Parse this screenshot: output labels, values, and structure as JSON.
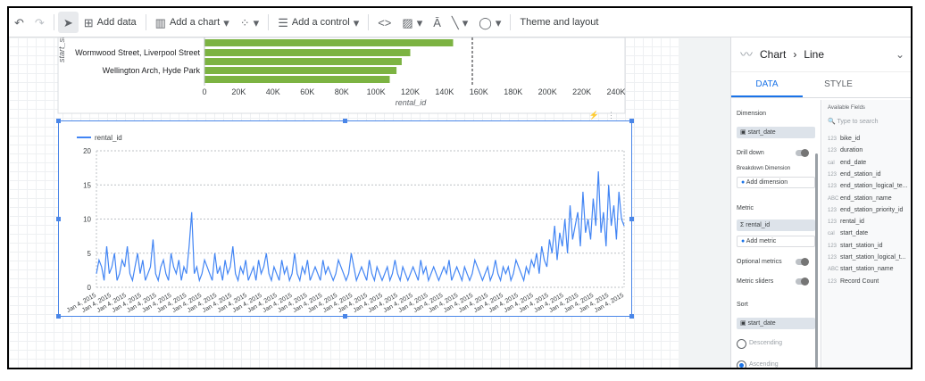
{
  "toolbar": {
    "add_data": "Add data",
    "add_chart": "Add a chart",
    "add_control": "Add a control",
    "theme_layout": "Theme and layout"
  },
  "bar_chart": {
    "axis_label_y": "start_stati",
    "axis_label_x": "rental_id",
    "categories": [
      "Wormwood Street, Liverpool Street",
      "Wellington Arch, Hyde Park"
    ],
    "x_ticks": [
      "0",
      "20K",
      "40K",
      "60K",
      "80K",
      "100K",
      "120K",
      "140K",
      "160K",
      "180K",
      "200K",
      "220K",
      "240K"
    ]
  },
  "line_chart": {
    "legend": "rental_id",
    "y_ticks": [
      "20",
      "15",
      "10",
      "5",
      "0"
    ],
    "x_tick_label": "Jan 4, 2015"
  },
  "chart_data": [
    {
      "type": "bar",
      "categories": [
        "(cut off)",
        "Wormwood Street, Liverpool Street",
        "(unlabeled)",
        "Wellington Arch, Hyde Park",
        "(unlabeled)"
      ],
      "values": [
        145000,
        120000,
        115000,
        112000,
        108000
      ],
      "xlabel": "rental_id",
      "ylabel": "start_stati",
      "xlim": [
        0,
        240000
      ]
    },
    {
      "type": "line",
      "series": [
        {
          "name": "rental_id",
          "values": [
            2,
            4,
            3,
            1,
            6,
            2,
            3,
            5,
            1,
            2,
            4,
            3,
            6,
            2,
            1,
            3,
            5,
            2,
            4,
            1,
            2,
            3,
            7,
            2,
            1,
            3,
            4,
            2,
            1,
            5,
            3,
            2,
            4,
            1,
            3,
            2,
            6,
            11,
            2,
            3,
            1,
            2,
            4,
            3,
            2,
            1,
            5,
            2,
            3,
            1,
            4,
            2,
            3,
            6,
            2,
            1,
            3,
            2,
            4,
            1,
            2,
            3,
            1,
            4,
            2,
            3,
            5,
            2,
            1,
            3,
            2,
            1,
            4,
            2,
            3,
            1,
            2,
            5,
            2,
            1,
            3,
            2,
            4,
            1,
            2,
            3,
            2,
            1,
            4,
            2,
            3,
            2,
            1,
            2,
            4,
            3,
            2,
            1,
            2,
            5,
            3,
            1,
            2,
            3,
            2,
            1,
            4,
            2,
            1,
            3,
            2,
            1,
            2,
            3,
            1,
            2,
            4,
            2,
            1,
            3,
            2,
            1,
            2,
            3,
            2,
            1,
            4,
            2,
            3,
            1,
            2,
            3,
            2,
            1,
            2,
            3,
            2,
            4,
            1,
            2,
            3,
            2,
            1,
            3,
            2,
            1,
            2,
            4,
            3,
            2,
            1,
            2,
            3,
            1,
            2,
            4,
            2,
            1,
            3,
            2,
            3,
            1,
            2,
            4,
            3,
            2,
            1,
            3,
            2,
            4,
            3,
            5,
            2,
            6,
            4,
            3,
            7,
            5,
            9,
            4,
            8,
            6,
            10,
            5,
            12,
            7,
            9,
            11,
            6,
            14,
            8,
            10,
            7,
            13,
            9,
            17,
            8,
            11,
            6,
            15,
            9,
            12,
            7,
            14,
            10,
            9
          ]
        }
      ],
      "ylim": [
        0,
        20
      ],
      "legend": "top-left"
    }
  ],
  "panel": {
    "title": "Chart",
    "subtitle": "Line",
    "tab_data": "DATA",
    "tab_style": "STYLE",
    "dimension_label": "Dimension",
    "dimension_value": "start_date",
    "drill_down": "Drill down",
    "breakdown_label": "Breakdown Dimension",
    "add_dimension": "Add dimension",
    "metric_label": "Metric",
    "metric_value": "rental_id",
    "add_metric": "Add metric",
    "optional_metrics": "Optional metrics",
    "metric_sliders": "Metric sliders",
    "sort_label": "Sort",
    "sort_value": "start_date",
    "descending": "Descending",
    "ascending": "Ascending",
    "available_fields": "Available Fields",
    "search_placeholder": "Type to search",
    "fields": [
      "bike_id",
      "duration",
      "end_date",
      "end_station_id",
      "end_station_logical_te...",
      "end_station_name",
      "end_station_priority_id",
      "rental_id",
      "start_date",
      "start_station_id",
      "start_station_logical_t...",
      "start_station_name",
      "Record Count"
    ],
    "field_types": [
      "123",
      "123",
      "cal",
      "123",
      "123",
      "ABC",
      "123",
      "123",
      "cal",
      "123",
      "123",
      "ABC",
      "123"
    ]
  }
}
